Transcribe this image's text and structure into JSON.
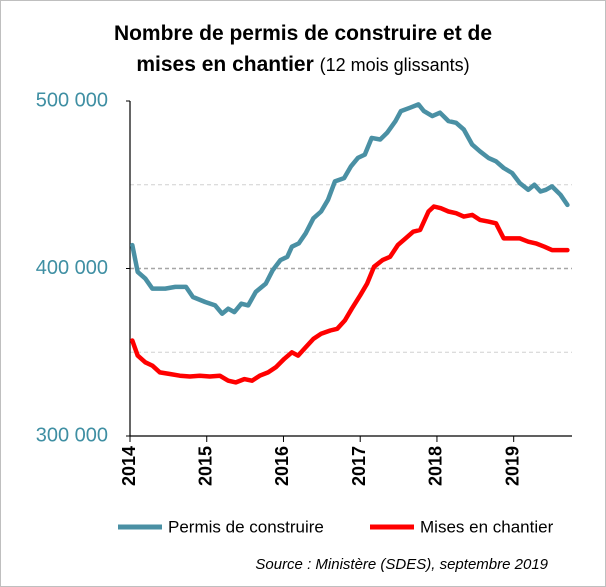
{
  "chart_data": {
    "type": "line",
    "title": "Nombre de permis de construire et de mises en chantier",
    "subtitle": "(12 mois glissants)",
    "source": "Source :  Ministère (SDES), septembre 2019",
    "xlim": [
      2014,
      2019.76
    ],
    "xticks": [
      2014,
      2015,
      2016,
      2017,
      2018,
      2019
    ],
    "ylim": [
      300000,
      500000
    ],
    "yticks": [
      {
        "value": 300000,
        "label": "300 000"
      },
      {
        "value": 400000,
        "label": "400 000"
      },
      {
        "value": 500000,
        "label": "500 000"
      }
    ],
    "ygrid": [
      350000,
      400000,
      450000
    ],
    "legend": "bottom",
    "series": [
      {
        "name": "Permis de construire",
        "color": "#4a90a4",
        "x": [
          2014.03,
          2014.1,
          2014.2,
          2014.29,
          2014.46,
          2014.59,
          2014.73,
          2014.82,
          2014.98,
          2015.11,
          2015.2,
          2015.28,
          2015.36,
          2015.45,
          2015.54,
          2015.64,
          2015.77,
          2015.86,
          2015.96,
          2016.05,
          2016.11,
          2016.2,
          2016.29,
          2016.39,
          2016.49,
          2016.58,
          2016.67,
          2016.79,
          2016.88,
          2016.97,
          2017.06,
          2017.15,
          2017.26,
          2017.35,
          2017.46,
          2017.53,
          2017.65,
          2017.76,
          2017.83,
          2017.94,
          2018.04,
          2018.15,
          2018.25,
          2018.35,
          2018.46,
          2018.56,
          2018.67,
          2018.77,
          2018.87,
          2018.98,
          2019.08,
          2019.19,
          2019.27,
          2019.35,
          2019.42,
          2019.5,
          2019.61,
          2019.7
        ],
        "values": [
          414000,
          398000,
          394000,
          388000,
          388000,
          389000,
          389000,
          383000,
          380000,
          378000,
          373000,
          376000,
          374000,
          379000,
          378000,
          386000,
          391000,
          399000,
          405000,
          407000,
          413000,
          415000,
          421000,
          430000,
          434000,
          441000,
          452000,
          454000,
          461000,
          466000,
          468000,
          478000,
          477000,
          481000,
          488000,
          494000,
          496000,
          498000,
          494000,
          491000,
          493000,
          488000,
          487000,
          483000,
          474000,
          470000,
          466000,
          464000,
          460000,
          457000,
          451000,
          447000,
          450000,
          446000,
          447000,
          449000,
          444000,
          438000
        ]
      },
      {
        "name": "Mises en chantier",
        "color": "#ff0000",
        "x": [
          2014.03,
          2014.1,
          2014.2,
          2014.29,
          2014.39,
          2014.52,
          2014.65,
          2014.78,
          2014.91,
          2015.04,
          2015.17,
          2015.28,
          2015.38,
          2015.49,
          2015.59,
          2015.69,
          2015.8,
          2015.9,
          2016.01,
          2016.11,
          2016.19,
          2016.29,
          2016.39,
          2016.49,
          2016.61,
          2016.7,
          2016.8,
          2016.89,
          2017.0,
          2017.09,
          2017.18,
          2017.29,
          2017.39,
          2017.49,
          2017.59,
          2017.69,
          2017.78,
          2017.89,
          2017.96,
          2018.05,
          2018.15,
          2018.25,
          2018.35,
          2018.46,
          2018.56,
          2018.67,
          2018.77,
          2018.87,
          2018.98,
          2019.08,
          2019.19,
          2019.29,
          2019.4,
          2019.5,
          2019.61,
          2019.7
        ],
        "values": [
          357000,
          348000,
          344000,
          342000,
          338000,
          337000,
          336000,
          335500,
          336000,
          335500,
          336000,
          333000,
          332000,
          334000,
          333000,
          336000,
          338000,
          341000,
          346000,
          350000,
          348000,
          353000,
          358000,
          361000,
          363000,
          364000,
          369000,
          376000,
          384000,
          391000,
          401000,
          405000,
          407000,
          414000,
          418000,
          422000,
          423000,
          434000,
          437000,
          436000,
          434000,
          433000,
          431000,
          432000,
          429000,
          428000,
          427000,
          418000,
          418000,
          418000,
          416000,
          415000,
          413000,
          411000,
          411000,
          411000
        ]
      }
    ]
  }
}
